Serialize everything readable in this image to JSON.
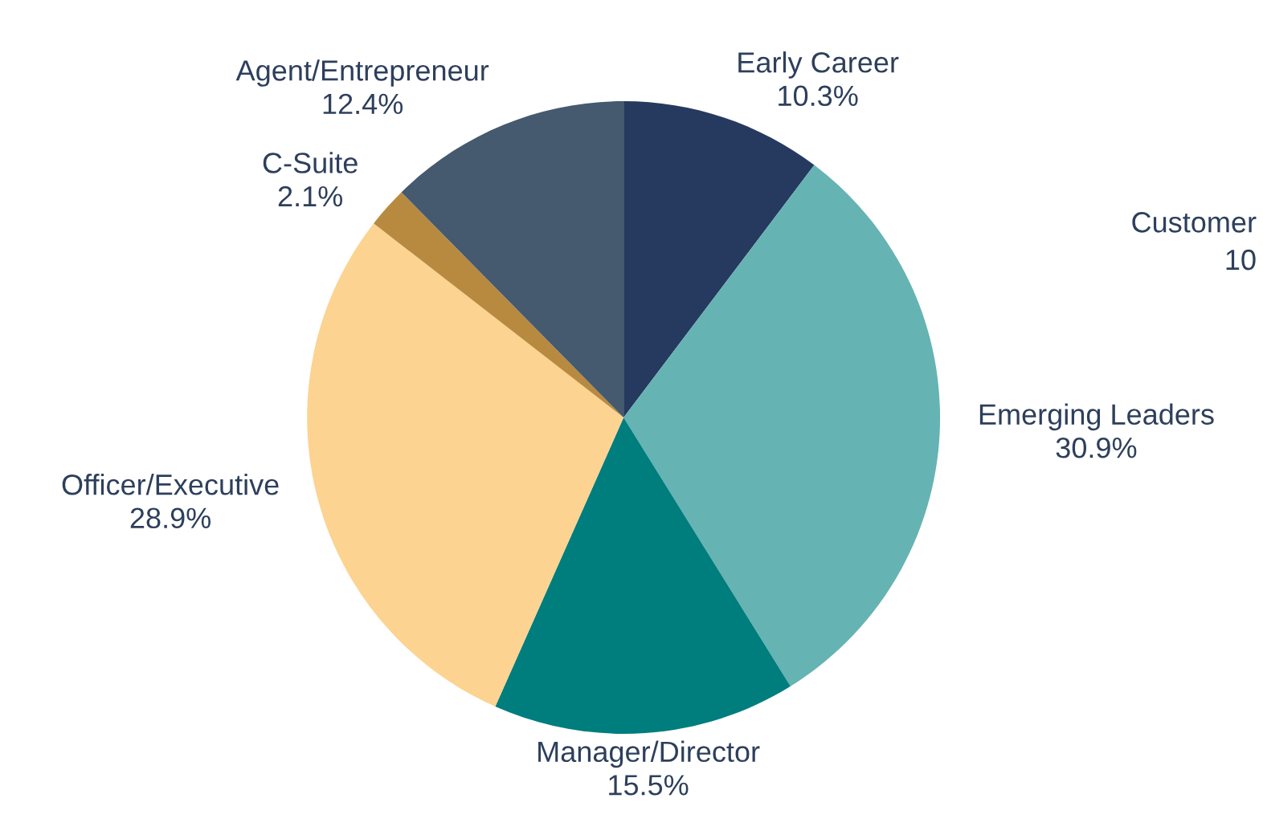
{
  "chart_data": {
    "type": "pie",
    "categories": [
      "Early Career",
      "Emerging Leaders",
      "Manager/Director",
      "Officer/Executive",
      "C-Suite",
      "Agent/Entrepreneur"
    ],
    "values": [
      10.3,
      30.9,
      15.5,
      28.9,
      2.1,
      12.4
    ],
    "value_labels": [
      "10.3%",
      "30.9%",
      "15.5%",
      "28.9%",
      "2.1%",
      "12.4%"
    ],
    "colors": [
      "#253a5e",
      "#66b3b3",
      "#007d7d",
      "#fdd391",
      "#b88a40",
      "#45596f"
    ],
    "annotations": [
      "Customer\n10"
    ],
    "legend": false
  }
}
